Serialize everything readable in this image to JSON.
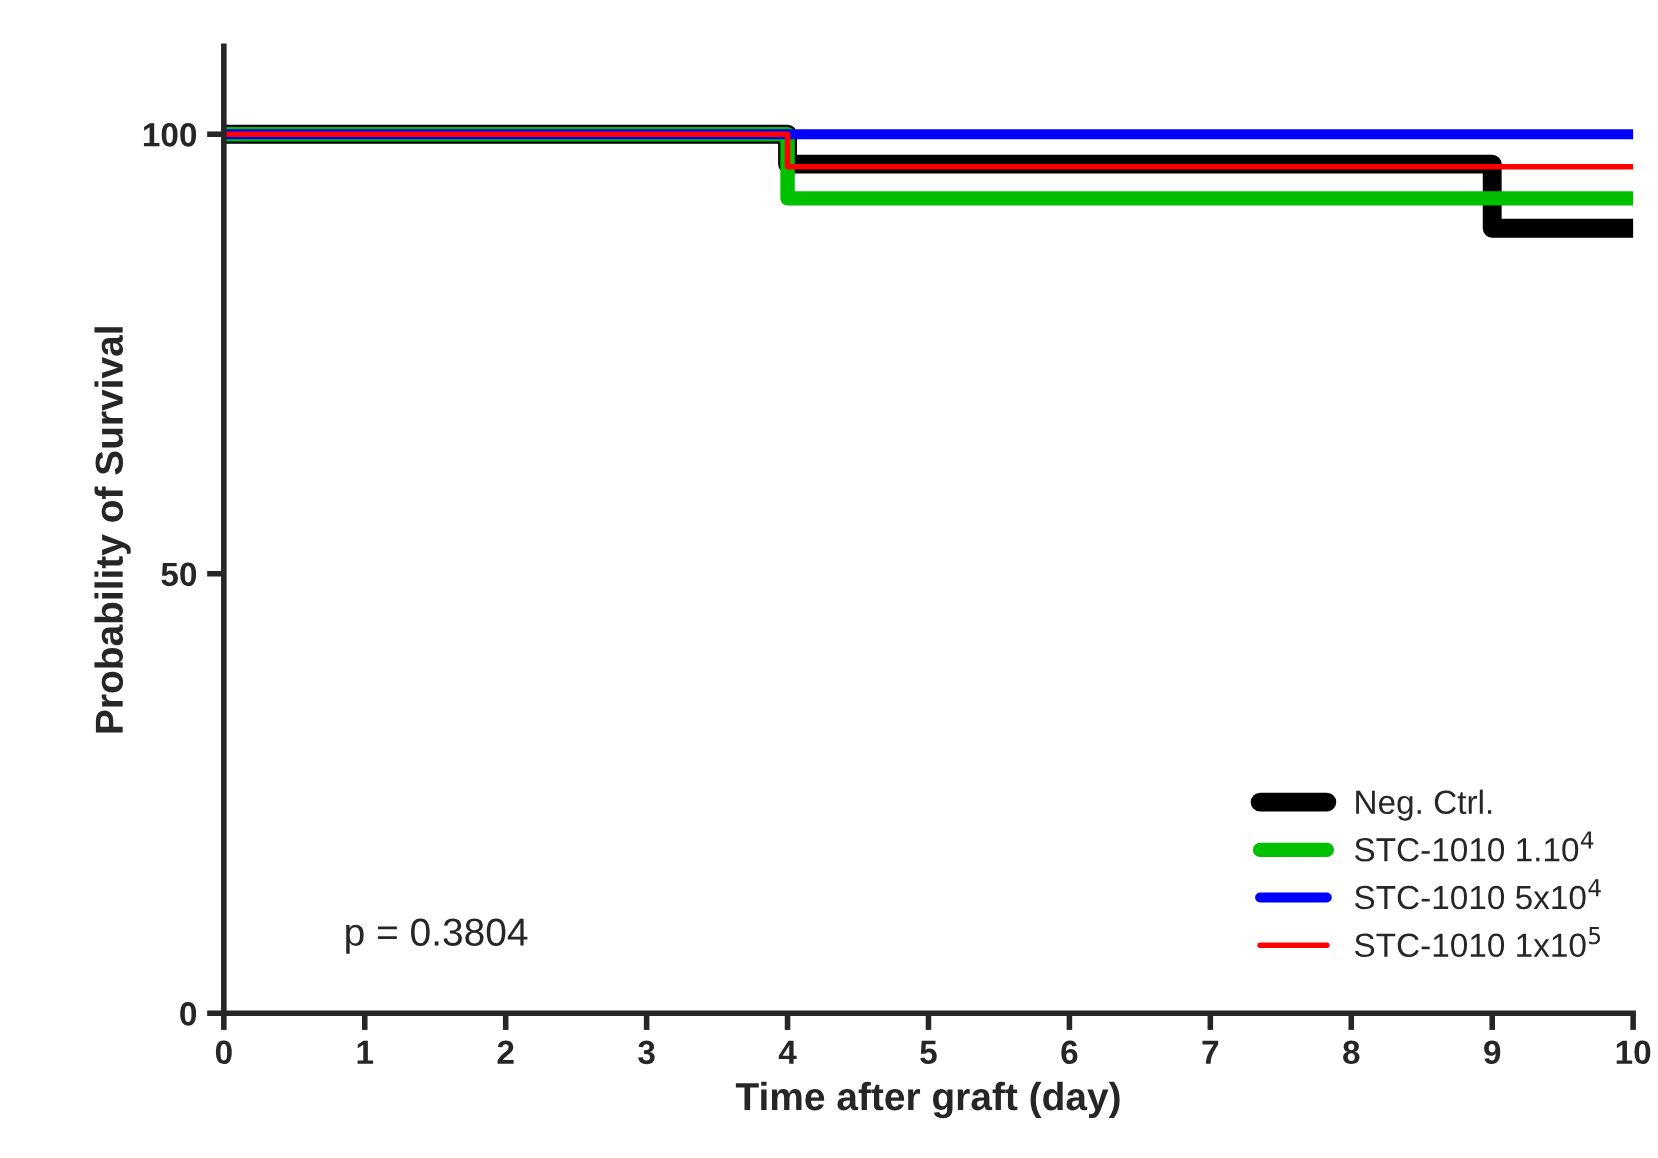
{
  "chart_data": {
    "type": "step",
    "xlabel": "Time after graft (day)",
    "ylabel": "Probability of Survival",
    "x": [
      0,
      4,
      9,
      10
    ],
    "series": [
      {
        "name": "Neg. Ctrl.",
        "color": "#000000",
        "values": [
          100,
          96.6,
          89.3,
          89.3
        ]
      },
      {
        "name": "STC-1010 1.10$^{4}$",
        "color": "#00c000",
        "values": [
          100,
          92.7,
          92.7,
          92.7
        ]
      },
      {
        "name": "STC-1010 5x10$^{4}$",
        "color": "#0000ff",
        "values": [
          100,
          100,
          100,
          100
        ]
      },
      {
        "name": "STC-1010 1x10$^{5}$",
        "color": "#ff0000",
        "values": [
          100,
          96.3,
          96.3,
          96.3
        ]
      }
    ],
    "xlim": [
      0,
      10
    ],
    "xticks": [
      0,
      1,
      2,
      3,
      4,
      5,
      6,
      7,
      8,
      9,
      10
    ],
    "ylim": [
      0,
      110
    ],
    "yticks": [
      0,
      50,
      100
    ],
    "annotations": [
      "p = 0.3804"
    ],
    "legend": "bottom right",
    "grid": false
  }
}
